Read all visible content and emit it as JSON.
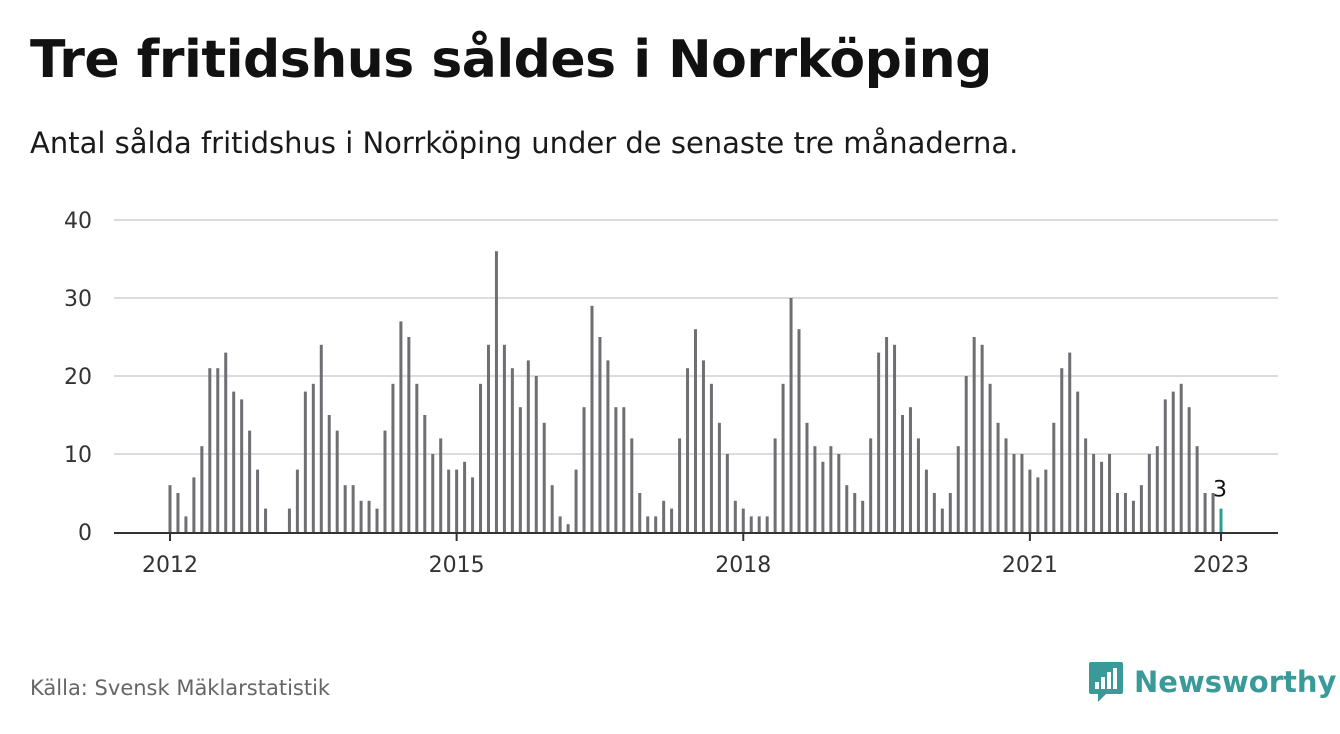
{
  "header": {
    "title": "Tre fritidshus såldes i Norrköping",
    "subtitle": "Antal sålda fritidshus i Norrköping under de senaste tre månaderna."
  },
  "footer": {
    "source": "Källa: Svensk Mäklarstatistik",
    "brand": "Newsworthy",
    "brand_icon": "newsworthy-chart-bubble-icon"
  },
  "colors": {
    "bar": "#6e6e73",
    "highlight": "#2a9d9a",
    "grid": "#dcdcdc",
    "axis": "#333333",
    "brand": "#3a9a9a"
  },
  "chart_data": {
    "type": "bar",
    "title": "Tre fritidshus såldes i Norrköping",
    "subtitle": "Antal sålda fritidshus i Norrköping under de senaste tre månaderna.",
    "xlabel": "",
    "ylabel": "",
    "ylim": [
      0,
      40
    ],
    "yticks": [
      0,
      10,
      20,
      30,
      40
    ],
    "xticks": [
      {
        "label": "2012",
        "index": 0
      },
      {
        "label": "2015",
        "index": 36
      },
      {
        "label": "2018",
        "index": 72
      },
      {
        "label": "2021",
        "index": 108
      },
      {
        "label": "2023",
        "index": 132
      }
    ],
    "grid": true,
    "x_start": "2012-01",
    "x_end": "2023-01",
    "period": "monthly",
    "values": [
      6,
      5,
      2,
      7,
      11,
      21,
      21,
      23,
      18,
      17,
      13,
      8,
      3,
      0,
      0,
      3,
      8,
      18,
      19,
      24,
      15,
      13,
      6,
      6,
      4,
      4,
      3,
      13,
      19,
      27,
      25,
      19,
      15,
      10,
      12,
      8,
      8,
      9,
      7,
      19,
      24,
      36,
      24,
      21,
      16,
      22,
      20,
      14,
      6,
      2,
      1,
      8,
      16,
      29,
      25,
      22,
      16,
      16,
      12,
      5,
      2,
      2,
      4,
      3,
      12,
      21,
      26,
      22,
      19,
      14,
      10,
      4,
      3,
      2,
      2,
      2,
      12,
      19,
      30,
      26,
      14,
      11,
      9,
      11,
      10,
      6,
      5,
      4,
      12,
      23,
      25,
      24,
      15,
      16,
      12,
      8,
      5,
      3,
      5,
      11,
      20,
      25,
      24,
      19,
      14,
      12,
      10,
      10,
      8,
      7,
      8,
      14,
      21,
      23,
      18,
      12,
      10,
      9,
      10,
      5,
      5,
      4,
      6,
      10,
      11,
      17,
      18,
      19,
      16,
      11,
      5,
      5,
      3
    ],
    "highlight_last": true,
    "annotations": [
      {
        "index": 132,
        "text": "3"
      }
    ]
  }
}
